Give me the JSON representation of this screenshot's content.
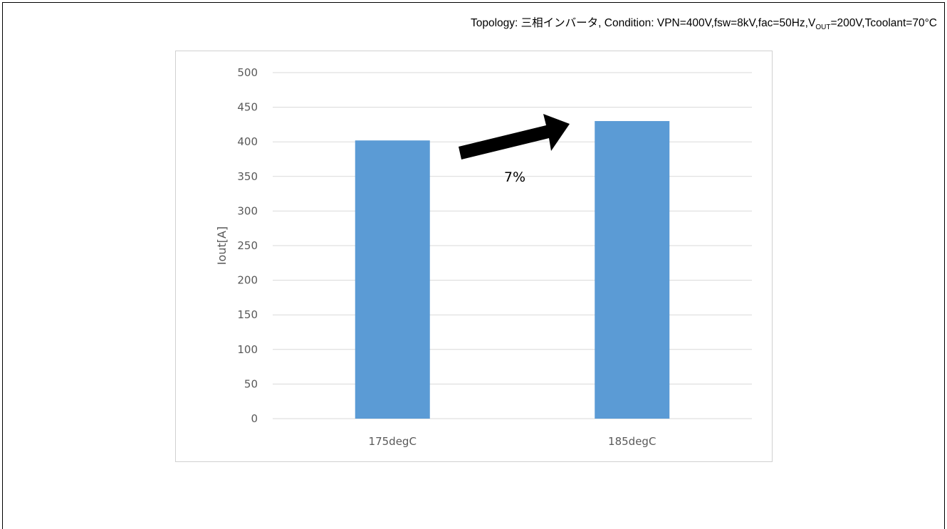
{
  "condition": {
    "prefix": "Topology:  三相インバータ, Condition: VPN=400V,fsw=8kV,fac=50Hz,V",
    "sub": "OUT",
    "suffix": "=200V,Tcoolant=70°C"
  },
  "chart_data": {
    "type": "bar",
    "categories": [
      "175degC",
      "185degC"
    ],
    "values": [
      402,
      430
    ],
    "ylabel": "Iout[A]",
    "xlabel": "",
    "ylim": [
      0,
      500
    ],
    "yticks": [
      0,
      50,
      100,
      150,
      200,
      250,
      300,
      350,
      400,
      450,
      500
    ],
    "grid": true,
    "bar_color": "#5b9bd5",
    "gridline_color": "#d9d9d9",
    "annotation": {
      "text": "7%",
      "arrow": "up-right"
    }
  }
}
